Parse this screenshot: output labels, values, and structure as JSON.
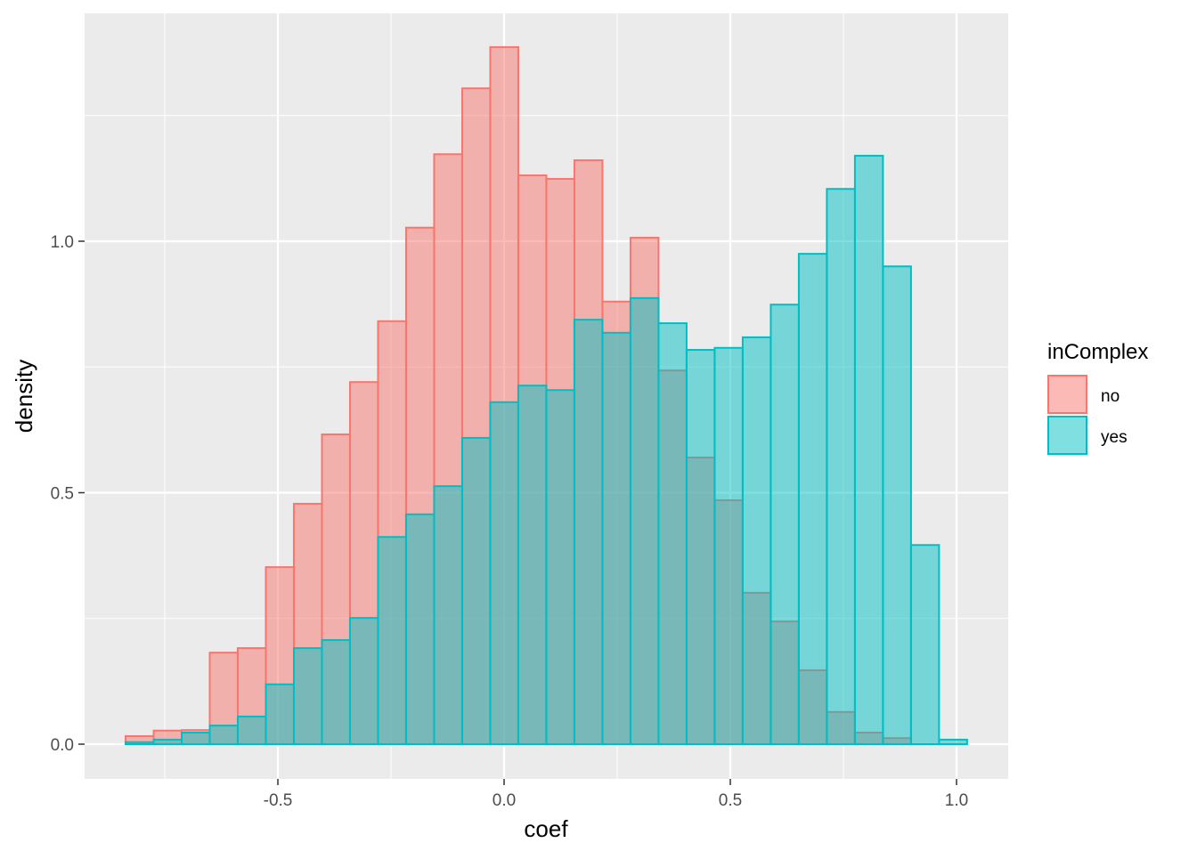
{
  "chart_data": {
    "type": "histogram",
    "xlabel": "coef",
    "ylabel": "density",
    "xlim": [
      -0.93,
      1.11
    ],
    "ylim": [
      -0.07,
      1.45
    ],
    "x_ticks": [
      -0.5,
      0.0,
      0.5,
      1.0
    ],
    "x_tick_labels": [
      "-0.5",
      "0.0",
      "0.5",
      "1.0"
    ],
    "y_ticks": [
      0.0,
      0.5,
      1.0
    ],
    "y_tick_labels": [
      "0.0",
      "0.5",
      "1.0"
    ],
    "grid": true,
    "bin_start": -0.8366,
    "bin_width": 0.062,
    "legend": {
      "title": "inComplex",
      "placement": "right"
    },
    "series": [
      {
        "name": "no",
        "fill": "#F8766D",
        "values": [
          0.016,
          0.027,
          0.028,
          0.182,
          0.191,
          0.352,
          0.478,
          0.616,
          0.72,
          0.841,
          1.027,
          1.173,
          1.304,
          1.386,
          1.131,
          1.124,
          1.161,
          0.88,
          1.007,
          0.743,
          0.57,
          0.485,
          0.301,
          0.244,
          0.147,
          0.064,
          0.023,
          0.012,
          0,
          0
        ]
      },
      {
        "name": "yes",
        "fill": "#00BFC4",
        "values": [
          0.004,
          0.009,
          0.023,
          0.037,
          0.055,
          0.119,
          0.191,
          0.207,
          0.251,
          0.412,
          0.457,
          0.513,
          0.609,
          0.68,
          0.713,
          0.704,
          0.844,
          0.818,
          0.887,
          0.837,
          0.784,
          0.788,
          0.809,
          0.874,
          0.975,
          1.104,
          1.17,
          0.95,
          0.396,
          0.009
        ]
      }
    ]
  }
}
